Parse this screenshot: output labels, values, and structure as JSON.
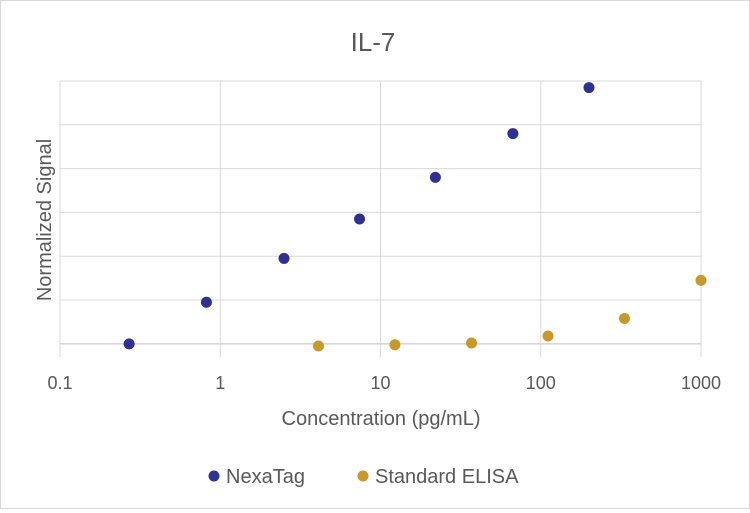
{
  "chart_data": {
    "type": "scatter",
    "title": "IL-7",
    "xlabel": "Concentration (pg/mL)",
    "ylabel": "Normalized Signal",
    "x_scale": "log",
    "xlim": [
      0.1,
      1000
    ],
    "ylim": [
      -0.3,
      6
    ],
    "x_ticks": [
      "0.1",
      "1",
      "10",
      "100",
      "1000"
    ],
    "y_gridlines": [
      0,
      1,
      2,
      3,
      4,
      5,
      6
    ],
    "grid": true,
    "legend_position": "bottom",
    "series": [
      {
        "name": "NexaTag",
        "color": "#2e3192",
        "points": [
          {
            "x": 0.27,
            "y": 0.0
          },
          {
            "x": 0.82,
            "y": 0.95
          },
          {
            "x": 2.5,
            "y": 1.95
          },
          {
            "x": 7.4,
            "y": 2.85
          },
          {
            "x": 22,
            "y": 3.8
          },
          {
            "x": 67,
            "y": 4.8
          },
          {
            "x": 200,
            "y": 5.85
          }
        ]
      },
      {
        "name": "Standard ELISA",
        "color": "#c9982a",
        "points": [
          {
            "x": 4.1,
            "y": -0.05
          },
          {
            "x": 12.3,
            "y": -0.02
          },
          {
            "x": 37,
            "y": 0.02
          },
          {
            "x": 111,
            "y": 0.18
          },
          {
            "x": 333,
            "y": 0.58
          },
          {
            "x": 1000,
            "y": 1.45
          }
        ]
      }
    ]
  }
}
